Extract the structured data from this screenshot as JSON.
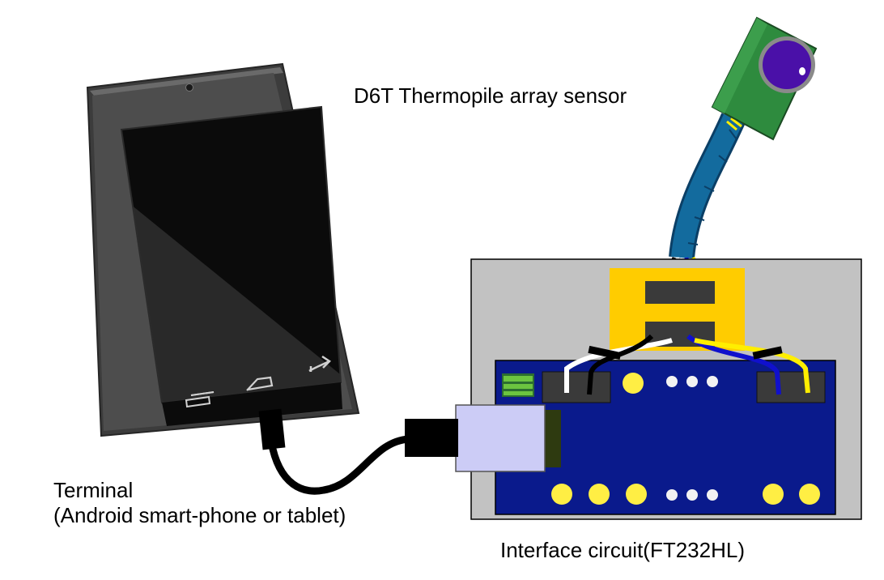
{
  "labels": {
    "sensor": "D6T Thermopile array sensor",
    "terminal_line1": "Terminal",
    "terminal_line2": "(Android smart-phone or tablet)",
    "interface": "Interface circuit(FT232HL)"
  },
  "colors": {
    "board_base": "#c2c2c2",
    "pcb": "#0a1a8c",
    "connector_yellow": "#ffcc00",
    "pad_yellow": "#ffee44",
    "sensor_pcb": "#2e8b3e",
    "sensor_lens": "#4a10a8",
    "cable_sleeve": "#136b9e",
    "phone_frame": "#4a4a4a",
    "usb_plug": "#ccccf6"
  },
  "icons": [
    "recent-apps-icon",
    "home-icon",
    "back-icon"
  ]
}
